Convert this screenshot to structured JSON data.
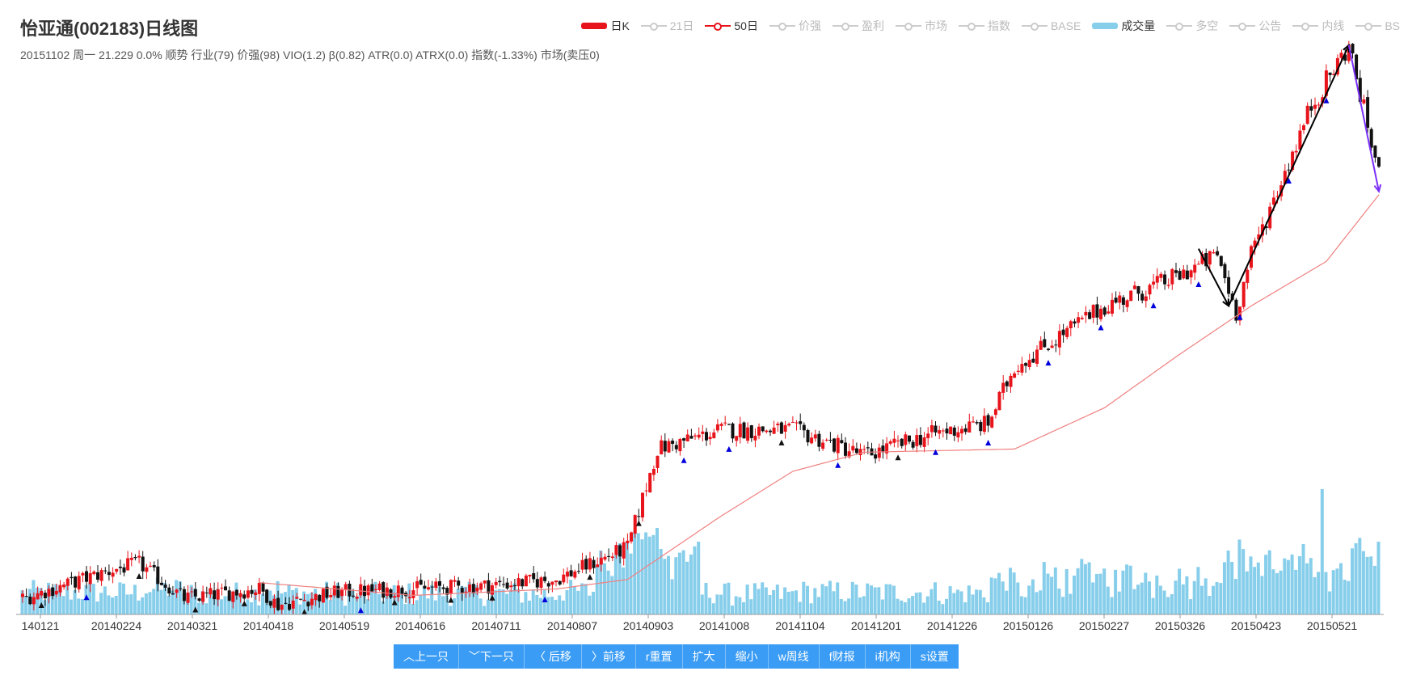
{
  "header": {
    "title": "怡亚通(002183)日线图",
    "subtitle": "20151102 周一 21.229 0.0% 顺势 行业(79) 价强(98) VIO(1.2) β(0.82) ATR(0.0) ATRX(0.0) 指数(-1.33%) 市场(卖压0)"
  },
  "legend": [
    {
      "label": "日K",
      "on": true,
      "kind": "box",
      "color": "#e8141b"
    },
    {
      "label": "21日",
      "on": false,
      "kind": "line",
      "color": "#cccccc"
    },
    {
      "label": "50日",
      "on": true,
      "kind": "line",
      "color": "#e8141b"
    },
    {
      "label": "价强",
      "on": false,
      "kind": "line",
      "color": "#cccccc"
    },
    {
      "label": "盈利",
      "on": false,
      "kind": "line",
      "color": "#cccccc"
    },
    {
      "label": "市场",
      "on": false,
      "kind": "line",
      "color": "#cccccc"
    },
    {
      "label": "指数",
      "on": false,
      "kind": "line",
      "color": "#cccccc"
    },
    {
      "label": "BASE",
      "on": false,
      "kind": "line",
      "color": "#cccccc"
    },
    {
      "label": "成交量",
      "on": true,
      "kind": "box",
      "color": "#87ceeb"
    },
    {
      "label": "多空",
      "on": false,
      "kind": "line",
      "color": "#cccccc"
    },
    {
      "label": "公告",
      "on": false,
      "kind": "line",
      "color": "#cccccc"
    },
    {
      "label": "内线",
      "on": false,
      "kind": "line",
      "color": "#cccccc"
    },
    {
      "label": "BS",
      "on": false,
      "kind": "line",
      "color": "#cccccc"
    }
  ],
  "toolbar": [
    {
      "label": "︿上一只"
    },
    {
      "label": "﹀下一只"
    },
    {
      "label": "〈 后移"
    },
    {
      "label": "〉前移"
    },
    {
      "label": "r重置"
    },
    {
      "label": "扩大"
    },
    {
      "label": "缩小"
    },
    {
      "label": "w周线"
    },
    {
      "label": "f财报"
    },
    {
      "label": "i机构"
    },
    {
      "label": "s设置"
    }
  ],
  "colors": {
    "up": "#e8141b",
    "down": "#111111",
    "ma50": "#f08080",
    "volume": "#87ceeb",
    "buy_mark": "#0000dd",
    "sell_mark": "#111111",
    "trend_black": "#000000",
    "trend_purple": "#7b2ff7"
  },
  "chart_data": {
    "type": "candlestick",
    "series": [
      {
        "name": "日K"
      },
      {
        "name": "50日"
      },
      {
        "name": "成交量"
      }
    ],
    "x_tick_labels": [
      "140121",
      "20140224",
      "20140321",
      "20140418",
      "20140519",
      "20140616",
      "20140711",
      "20140807",
      "20140903",
      "20141008",
      "20141104",
      "20141201",
      "20141226",
      "20150126",
      "20150227",
      "20150326",
      "20150423",
      "20150521"
    ],
    "close_keypoints": [
      {
        "date": "20140121",
        "close": 11.0
      },
      {
        "date": "20140224",
        "close": 11.9
      },
      {
        "date": "20140305",
        "close": 12.1
      },
      {
        "date": "20140321",
        "close": 11.0
      },
      {
        "date": "20140418",
        "close": 11.3
      },
      {
        "date": "20140425",
        "close": 10.8
      },
      {
        "date": "20140519",
        "close": 11.2
      },
      {
        "date": "20140616",
        "close": 11.3
      },
      {
        "date": "20140711",
        "close": 11.4
      },
      {
        "date": "20140807",
        "close": 11.6
      },
      {
        "date": "20140903",
        "close": 12.6
      },
      {
        "date": "20140915",
        "close": 15.7
      },
      {
        "date": "20141008",
        "close": 16.3
      },
      {
        "date": "20141104",
        "close": 16.3
      },
      {
        "date": "20141201",
        "close": 15.5
      },
      {
        "date": "20141226",
        "close": 16.2
      },
      {
        "date": "20150115",
        "close": 16.5
      },
      {
        "date": "20150126",
        "close": 18.3
      },
      {
        "date": "20150227",
        "close": 20.2
      },
      {
        "date": "20150326",
        "close": 21.1
      },
      {
        "date": "20150410",
        "close": 21.8
      },
      {
        "date": "20150417",
        "close": 20.0
      },
      {
        "date": "20150423",
        "close": 21.8
      },
      {
        "date": "20150515",
        "close": 26.5
      },
      {
        "date": "20150529",
        "close": 28.4
      },
      {
        "date": "20150610",
        "close": 24.3
      }
    ],
    "ma50_keypoints": [
      {
        "date": "20140418",
        "value": 11.5
      },
      {
        "date": "20140616",
        "value": 11.1
      },
      {
        "date": "20140807",
        "value": 11.3
      },
      {
        "date": "20140903",
        "value": 11.6
      },
      {
        "date": "20141008",
        "value": 13.6
      },
      {
        "date": "20141104",
        "value": 15.0
      },
      {
        "date": "20141201",
        "value": 15.6
      },
      {
        "date": "20150126",
        "value": 15.7
      },
      {
        "date": "20150227",
        "value": 17.0
      },
      {
        "date": "20150326",
        "value": 18.6
      },
      {
        "date": "20150423",
        "value": 20.2
      },
      {
        "date": "20150521",
        "value": 21.6
      },
      {
        "date": "20150610",
        "value": 23.7
      }
    ],
    "trend_lines": [
      {
        "color": "black",
        "from": {
          "date": "20150403",
          "price": 22.0
        },
        "to": {
          "date": "20150415",
          "price": 20.2
        }
      },
      {
        "color": "black",
        "from": {
          "date": "20150415",
          "price": 20.2
        },
        "to": {
          "date": "20150529",
          "price": 28.4
        }
      },
      {
        "color": "purple",
        "from": {
          "date": "20150529",
          "price": 28.4
        },
        "to": {
          "date": "20150610",
          "price": 23.8
        }
      }
    ],
    "y_range": [
      10.5,
      28.6
    ],
    "grid": false,
    "legend_position": "top-right"
  }
}
